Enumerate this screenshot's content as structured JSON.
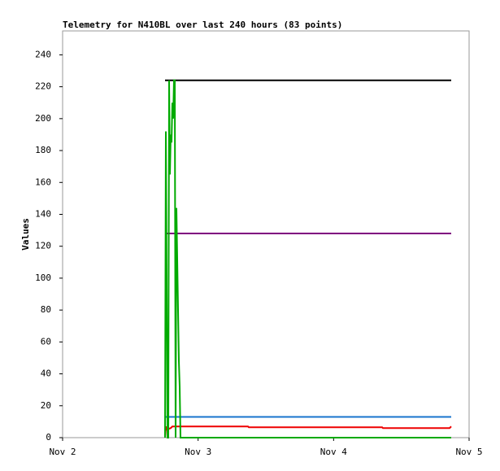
{
  "chart_data": {
    "type": "line",
    "title": "Telemetry for N410BL over last 240 hours (83 points)",
    "y_label": "Values",
    "xlim": [
      0,
      3
    ],
    "xticks": [
      {
        "value": 0,
        "label": "Nov 2"
      },
      {
        "value": 1,
        "label": "Nov 3"
      },
      {
        "value": 2,
        "label": "Nov 4"
      },
      {
        "value": 3,
        "label": "Nov 5"
      }
    ],
    "ylim": [
      0,
      255
    ],
    "yticks": [
      0,
      20,
      40,
      60,
      80,
      100,
      120,
      140,
      160,
      180,
      200,
      220,
      240
    ],
    "series": [
      {
        "color": "#000000",
        "x": [
          0.756,
          2.868
        ],
        "values": [
          224,
          224
        ]
      },
      {
        "color": "#800080",
        "x": [
          0.756,
          2.868
        ],
        "values": [
          128,
          128
        ]
      },
      {
        "color": "#1874cd",
        "x": [
          0.756,
          2.868
        ],
        "values": [
          13,
          13
        ]
      },
      {
        "color": "#ee0000",
        "x": [
          0.756,
          0.762,
          0.768,
          0.798,
          0.81,
          1.368,
          1.374,
          2.358,
          2.364,
          2.856,
          2.868
        ],
        "values": [
          0,
          7,
          5,
          6,
          7,
          7,
          6.5,
          6.5,
          6,
          6,
          7
        ]
      },
      {
        "color": "#00aa00",
        "x": [
          0.756,
          0.762,
          0.774,
          0.78,
          0.786,
          0.792,
          0.798,
          0.804,
          0.81,
          0.816,
          0.822,
          0.828,
          0.834,
          0.84,
          0.846,
          0.852,
          0.858,
          0.864,
          0.87,
          2.868
        ],
        "values": [
          0,
          192,
          0,
          0,
          224,
          165,
          190,
          185,
          210,
          200,
          224,
          224,
          0,
          144,
          112,
          80,
          48,
          32,
          0,
          0
        ]
      }
    ]
  }
}
